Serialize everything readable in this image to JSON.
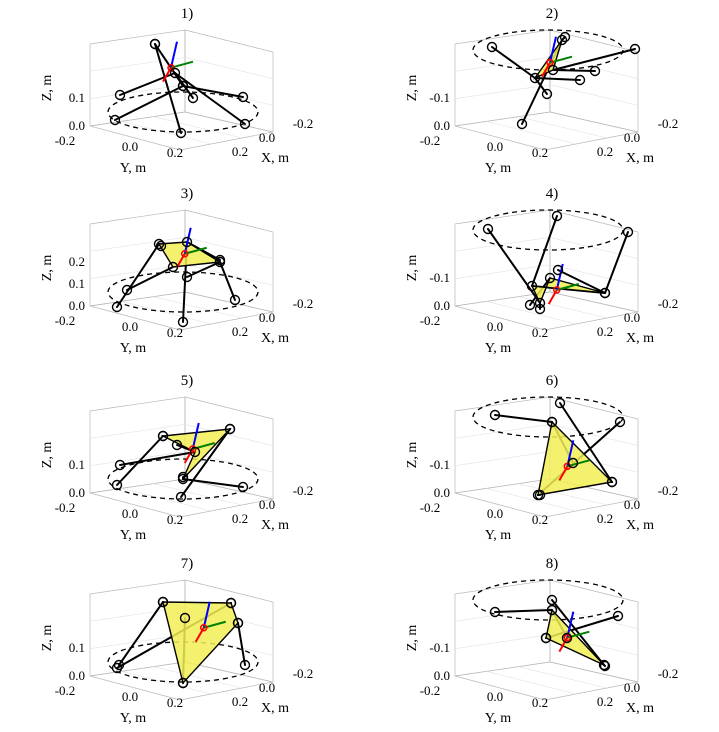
{
  "axis_labels": {
    "x": "X, m",
    "y": "Y, m",
    "z": "Z, m"
  },
  "colors": {
    "platform": "#f2ee55",
    "x_axis": "#ff0000",
    "y_axis": "#008000",
    "z_axis": "#0000ff"
  },
  "panels": [
    {
      "title": "1)",
      "zticks": [
        "0.0",
        "0.1"
      ],
      "yticks": [
        "-0.2",
        "0.0",
        "0.2"
      ],
      "xticks": [
        "-0.2",
        "0.0",
        "0.2"
      ]
    },
    {
      "title": "2)",
      "zticks": [
        "0.0",
        "-0.1"
      ],
      "yticks": [
        "-0.2",
        "0.0",
        "0.2"
      ],
      "xticks": [
        "-0.2",
        "0.0",
        "0.2"
      ]
    },
    {
      "title": "3)",
      "zticks": [
        "0.0",
        "0.1",
        "0.2"
      ],
      "yticks": [
        "-0.2",
        "0.0",
        "0.2"
      ],
      "xticks": [
        "-0.2",
        "0.0",
        "0.2"
      ]
    },
    {
      "title": "4)",
      "zticks": [
        "0.0",
        "-0.1"
      ],
      "yticks": [
        "-0.2",
        "0.0",
        "0.2"
      ],
      "xticks": [
        "-0.2",
        "0.0",
        "0.2"
      ]
    },
    {
      "title": "5)",
      "zticks": [
        "0.0",
        "0.1"
      ],
      "yticks": [
        "-0.2",
        "0.0",
        "0.2"
      ],
      "xticks": [
        "-0.2",
        "0.0",
        "0.2"
      ]
    },
    {
      "title": "6)",
      "zticks": [
        "0.0",
        "-0.1"
      ],
      "yticks": [
        "-0.2",
        "0.0",
        "0.2"
      ],
      "xticks": [
        "-0.2",
        "0.0",
        "0.2"
      ]
    },
    {
      "title": "7)",
      "zticks": [
        "0.0",
        "0.1"
      ],
      "yticks": [
        "-0.2",
        "0.0",
        "0.2"
      ],
      "xticks": [
        "-0.2",
        "0.0",
        "0.2"
      ]
    },
    {
      "title": "8)",
      "zticks": [
        "0.0",
        "-0.1"
      ],
      "yticks": [
        "-0.2",
        "0.0",
        "0.2"
      ],
      "xticks": [
        "-0.2",
        "0.0",
        "0.2"
      ]
    }
  ]
}
